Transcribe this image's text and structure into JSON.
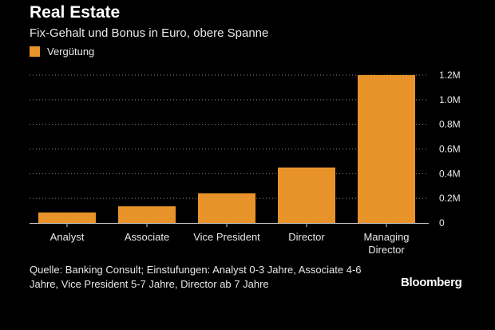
{
  "header": {
    "title": "Real Estate",
    "subtitle": "Fix-Gehalt und Bonus in Euro, obere Spanne"
  },
  "legend": {
    "label": "Vergütung",
    "color": "#e8932a"
  },
  "chart_data": {
    "type": "bar",
    "title": "Real Estate",
    "subtitle": "Fix-Gehalt und Bonus in Euro, obere Spanne",
    "categories": [
      "Analyst",
      "Associate",
      "Vice President",
      "Director",
      "Managing Director"
    ],
    "category_lines": [
      [
        "Analyst"
      ],
      [
        "Associate"
      ],
      [
        "Vice President"
      ],
      [
        "Director"
      ],
      [
        "Managing",
        "Director"
      ]
    ],
    "series": [
      {
        "name": "Vergütung",
        "values": [
          85000,
          135000,
          240000,
          450000,
          1200000
        ],
        "color": "#e8932a"
      }
    ],
    "ylim": [
      0,
      1200000
    ],
    "yticks": [
      0,
      200000,
      400000,
      600000,
      800000,
      1000000,
      1200000
    ],
    "ytick_labels": [
      "0",
      "0.2M",
      "0.4M",
      "0.6M",
      "0.8M",
      "1.0M",
      "1.2M"
    ],
    "xlabel": "",
    "ylabel": "",
    "grid": true,
    "y_axis_side": "right",
    "legend_position": "top-left"
  },
  "footer": {
    "source": "Quelle: Banking Consult; Einstufungen: Analyst 0-3 Jahre, Associate 4-6 Jahre, Vice President 5-7 Jahre, Director ab 7 Jahre",
    "brand": "Bloomberg"
  }
}
